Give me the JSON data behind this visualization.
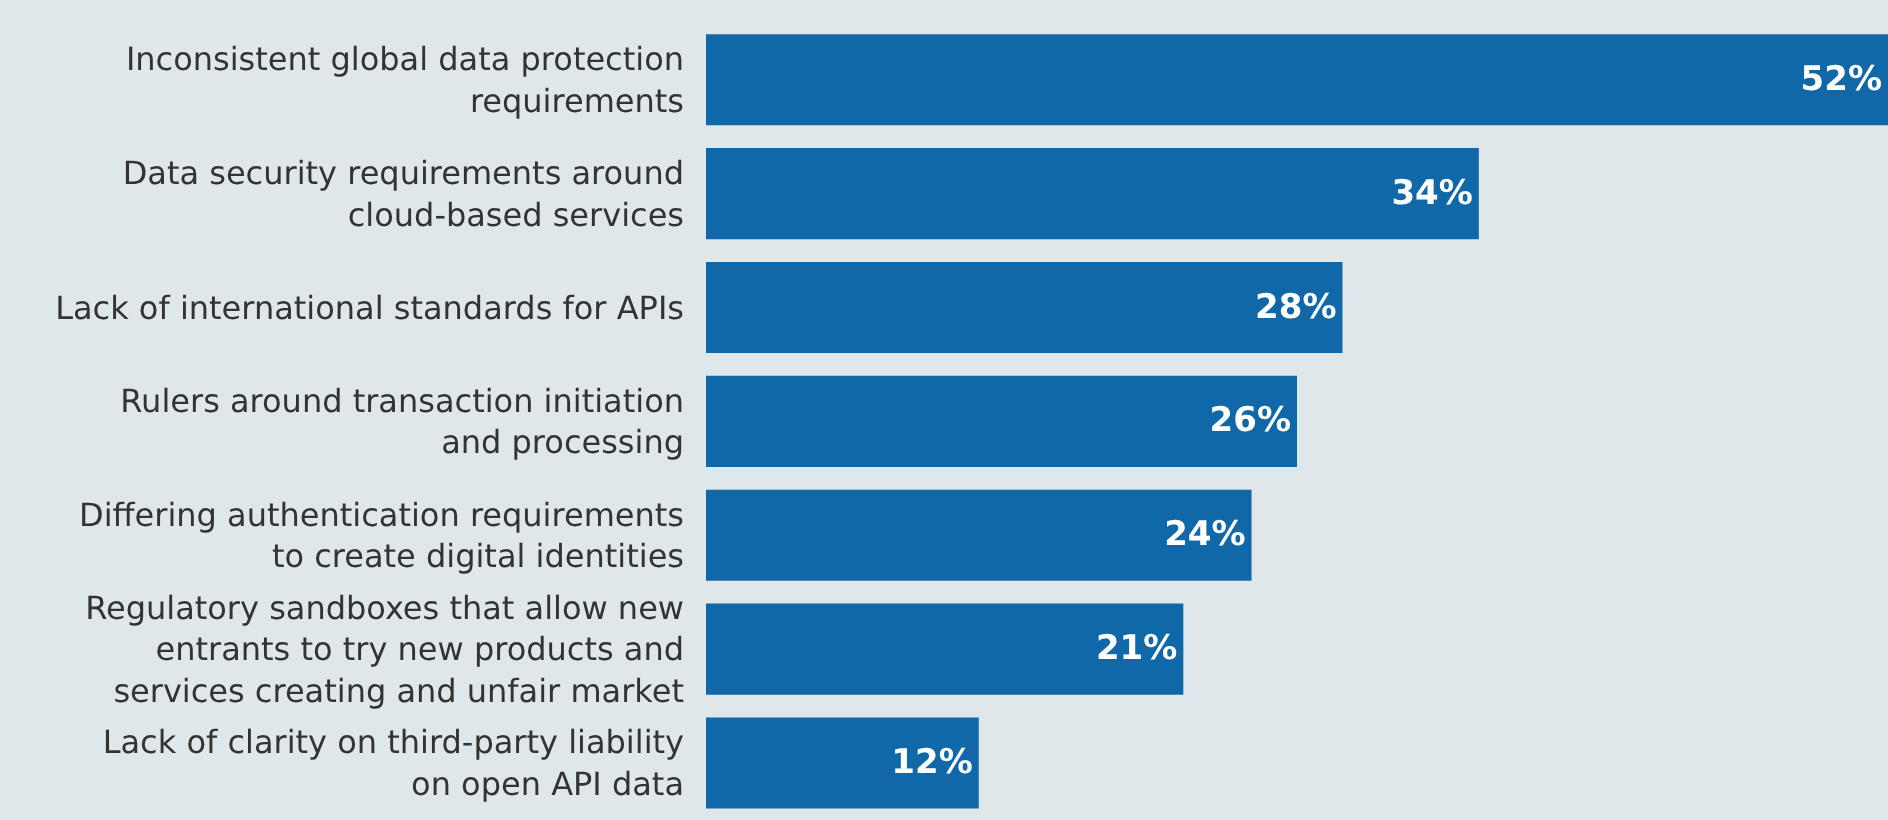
{
  "chart_data": {
    "type": "bar",
    "orientation": "horizontal",
    "categories": [
      "Inconsistent global data protection\nrequirements",
      "Data security requirements around\ncloud-based services",
      "Lack of international standards for APIs",
      "Rulers around transaction initiation\nand processing",
      "Differing authentication requirements\nto create digital identities",
      "Regulatory sandboxes that allow new\nentrants to try new products and\nservices creating and unfair market",
      "Lack of clarity on third-party liability\non open API data"
    ],
    "values": [
      52,
      34,
      28,
      26,
      24,
      21,
      12
    ],
    "value_labels": [
      "52%",
      "34%",
      "28%",
      "26%",
      "24%",
      "21%",
      "12%"
    ],
    "color": "#1068a8",
    "xlim": [
      0,
      52
    ],
    "tick_labels": "y",
    "grid": false
  }
}
